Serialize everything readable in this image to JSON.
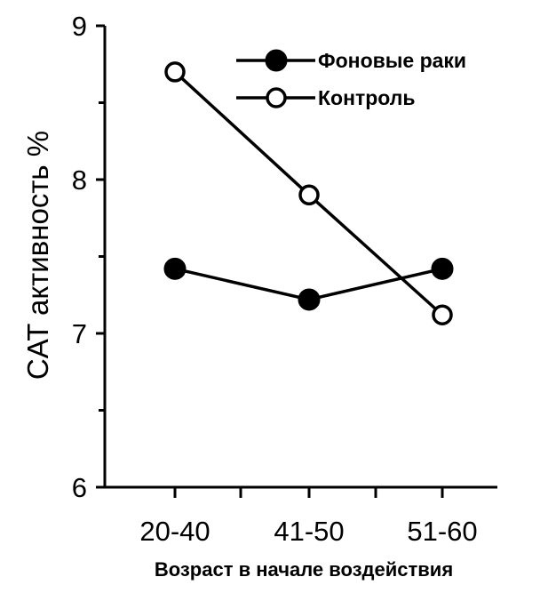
{
  "chart_data": {
    "type": "line",
    "title": "",
    "xlabel": "Возраст в начале воздействия",
    "ylabel": "CAT активность %",
    "categories": [
      "20-40",
      "41-50",
      "51-60"
    ],
    "yticks": [
      "6",
      "7",
      "8",
      "9"
    ],
    "ylim": [
      6,
      9
    ],
    "grid": false,
    "legend_position": "top-right",
    "series": [
      {
        "name": "Фоновые раки",
        "marker": "filled-circle",
        "values": [
          7.42,
          7.22,
          7.42
        ]
      },
      {
        "name": "Контроль",
        "marker": "open-circle",
        "values": [
          8.7,
          7.9,
          7.12
        ]
      }
    ],
    "colors": {
      "line": "#000000",
      "background": "#ffffff"
    }
  }
}
